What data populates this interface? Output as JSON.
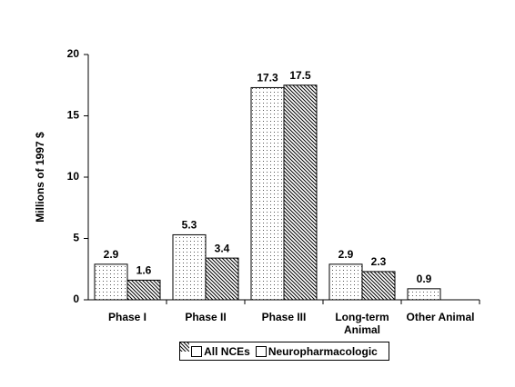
{
  "chart_data": {
    "type": "bar",
    "y_label": "Millions of 1997 $",
    "categories": [
      "Phase I",
      "Phase II",
      "Phase III",
      "Long-term Animal",
      "Other Animal"
    ],
    "series": [
      {
        "name": "All NCEs",
        "pattern": "dots",
        "values": [
          2.9,
          5.3,
          17.3,
          2.9,
          0.9
        ]
      },
      {
        "name": "Neuropharmacologic",
        "pattern": "hatch",
        "values": [
          1.6,
          3.4,
          17.5,
          2.3,
          null
        ]
      }
    ],
    "ylim": [
      0,
      20
    ],
    "yticks": [
      0,
      5,
      10,
      15,
      20
    ],
    "legend": "bottom"
  }
}
